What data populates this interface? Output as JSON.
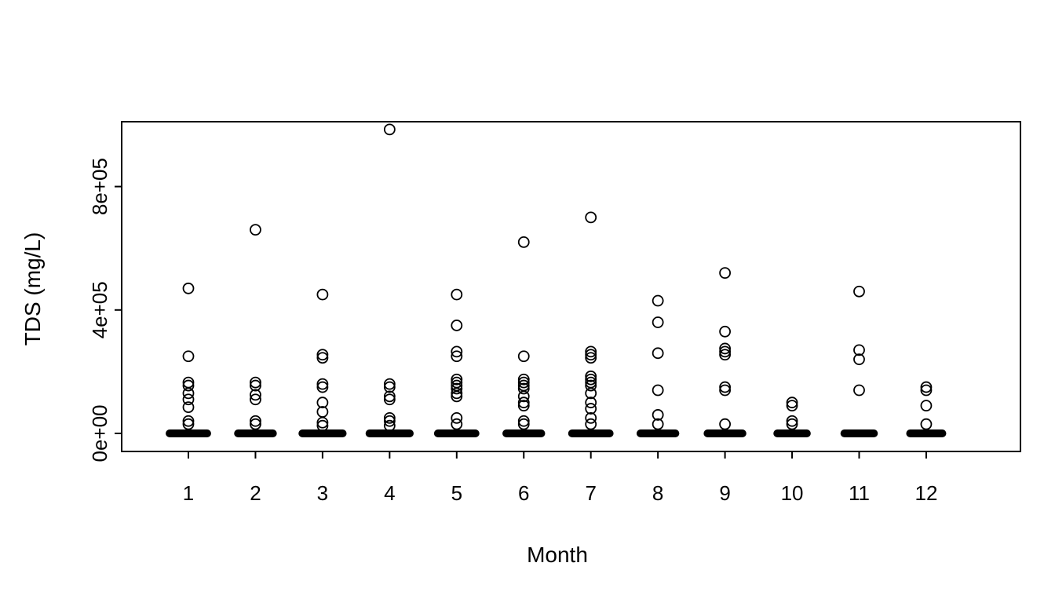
{
  "chart_data": {
    "type": "scatter",
    "title": "",
    "xlabel": "Month",
    "ylabel": "TDS (mg/L)",
    "marker": "open-circle",
    "grid": false,
    "legend": "none",
    "x_ticks": [
      "1",
      "2",
      "3",
      "4",
      "5",
      "6",
      "7",
      "8",
      "9",
      "10",
      "11",
      "12"
    ],
    "y_ticks": [
      {
        "v": 0,
        "label": "0e+00"
      },
      {
        "v": 400000,
        "label": "4e+05"
      },
      {
        "v": 800000,
        "label": "8e+05"
      }
    ],
    "xlim": [
      0.4,
      13.4
    ],
    "ylim": [
      -58000,
      1011000
    ],
    "zero_cluster_note": "dense overlapping points near 0 mg/L form a solid horizontal bar at every month",
    "series": [
      {
        "month": 1,
        "zero_cluster": true,
        "zero_jitter_halfwidth": 0.28,
        "points": [
          470000,
          250000,
          165000,
          155000,
          130000,
          110000,
          85000,
          40000,
          30000
        ]
      },
      {
        "month": 2,
        "zero_cluster": true,
        "zero_jitter_halfwidth": 0.26,
        "points": [
          660000,
          165000,
          155000,
          125000,
          110000,
          40000,
          30000
        ]
      },
      {
        "month": 3,
        "zero_cluster": true,
        "zero_jitter_halfwidth": 0.3,
        "points": [
          450000,
          255000,
          245000,
          160000,
          150000,
          100000,
          70000,
          35000,
          25000
        ]
      },
      {
        "month": 4,
        "zero_cluster": true,
        "zero_jitter_halfwidth": 0.3,
        "points": [
          985000,
          160000,
          150000,
          120000,
          110000,
          50000,
          40000,
          25000
        ]
      },
      {
        "month": 5,
        "zero_cluster": true,
        "zero_jitter_halfwidth": 0.28,
        "points": [
          450000,
          350000,
          265000,
          250000,
          175000,
          165000,
          155000,
          145000,
          130000,
          120000,
          50000,
          30000
        ]
      },
      {
        "month": 6,
        "zero_cluster": true,
        "zero_jitter_halfwidth": 0.26,
        "points": [
          620000,
          250000,
          175000,
          165000,
          155000,
          145000,
          120000,
          100000,
          90000,
          40000,
          30000
        ]
      },
      {
        "month": 7,
        "zero_cluster": true,
        "zero_jitter_halfwidth": 0.28,
        "points": [
          700000,
          265000,
          255000,
          245000,
          185000,
          175000,
          165000,
          155000,
          130000,
          100000,
          80000,
          50000,
          30000
        ]
      },
      {
        "month": 8,
        "zero_cluster": true,
        "zero_jitter_halfwidth": 0.26,
        "points": [
          430000,
          360000,
          260000,
          140000,
          60000,
          30000
        ]
      },
      {
        "month": 9,
        "zero_cluster": true,
        "zero_jitter_halfwidth": 0.26,
        "points": [
          520000,
          330000,
          275000,
          265000,
          255000,
          150000,
          140000,
          30000
        ]
      },
      {
        "month": 10,
        "zero_cluster": true,
        "zero_jitter_halfwidth": 0.22,
        "points": [
          100000,
          90000,
          40000,
          30000
        ]
      },
      {
        "month": 11,
        "zero_cluster": true,
        "zero_jitter_halfwidth": 0.22,
        "points": [
          460000,
          270000,
          240000,
          140000
        ]
      },
      {
        "month": 12,
        "zero_cluster": true,
        "zero_jitter_halfwidth": 0.24,
        "points": [
          150000,
          140000,
          90000,
          30000
        ]
      }
    ]
  }
}
